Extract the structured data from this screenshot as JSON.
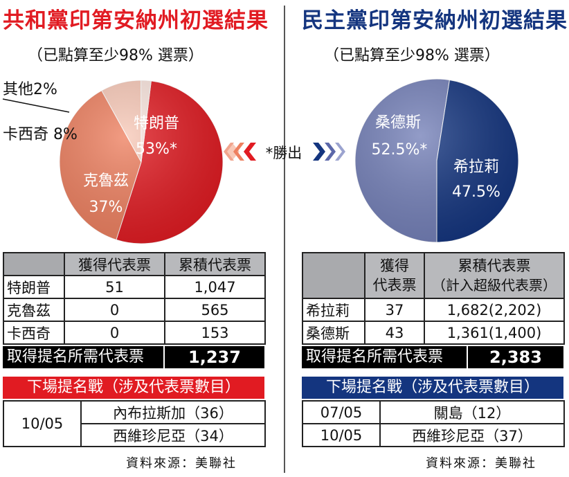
{
  "left": {
    "title": "共和黨印第安納州初選結果",
    "subtitle": "（已點算至少98% 選票）",
    "chart_data": {
      "type": "pie",
      "series": [
        {
          "name": "特朗普",
          "value": 53,
          "label": "53%*",
          "color": "#e11b22"
        },
        {
          "name": "克魯茲",
          "value": 37,
          "label": "37%",
          "color": "#ee8060"
        },
        {
          "name": "卡西奇",
          "value": 8,
          "label": "8%",
          "color": "#f8c9b8"
        },
        {
          "name": "其他",
          "value": 2,
          "label": "2%",
          "color": "#fbe6df"
        }
      ]
    },
    "outside_labels": {
      "other": "其他2%",
      "kasich": "卡西奇 8%"
    },
    "table": {
      "headers": [
        "",
        "獲得代表票",
        "累積代表票"
      ],
      "rows": [
        {
          "name": "特朗普",
          "won": "51",
          "total": "1,047"
        },
        {
          "name": "克魯茲",
          "won": "0",
          "total": "565"
        },
        {
          "name": "卡西奇",
          "won": "0",
          "total": "153"
        }
      ],
      "needed_label": "取得提名所需代表票",
      "needed_value": "1,237"
    },
    "next": {
      "title": "下場提名戰（涉及代表票數目）",
      "date": "10/05",
      "items": [
        "內布拉斯加（36）",
        "西維珍尼亞（34）"
      ]
    },
    "source": "資料來源：美聯社"
  },
  "center": {
    "label": "*勝出"
  },
  "right": {
    "title": "民主黨印第安納州初選結果",
    "subtitle": "（已點算至少98% 選票）",
    "chart_data": {
      "type": "pie",
      "series": [
        {
          "name": "桑德斯",
          "value": 52.5,
          "label": "52.5%*",
          "color": "#7480b8"
        },
        {
          "name": "希拉莉",
          "value": 47.5,
          "label": "47.5%",
          "color": "#14357f"
        }
      ]
    },
    "table": {
      "headers": [
        "",
        "獲得代表票",
        "累積代表票（計入超級代表票）"
      ],
      "header_lines": {
        "won": [
          "獲得",
          "代表票"
        ],
        "total": [
          "累積代表票",
          "（計入超級代表票）"
        ]
      },
      "rows": [
        {
          "name": "希拉莉",
          "won": "37",
          "total": "1,682(2,202)"
        },
        {
          "name": "桑德斯",
          "won": "43",
          "total": "1,361(1,400)"
        }
      ],
      "needed_label": "取得提名所需代表票",
      "needed_value": "2,383"
    },
    "next": {
      "title": "下場提名戰（涉及代表票數目）",
      "rows": [
        {
          "date": "07/05",
          "item": "關島（12）"
        },
        {
          "date": "10/05",
          "item": "西維珍尼亞（37）"
        }
      ]
    },
    "source": "資料來源：美聯社"
  }
}
